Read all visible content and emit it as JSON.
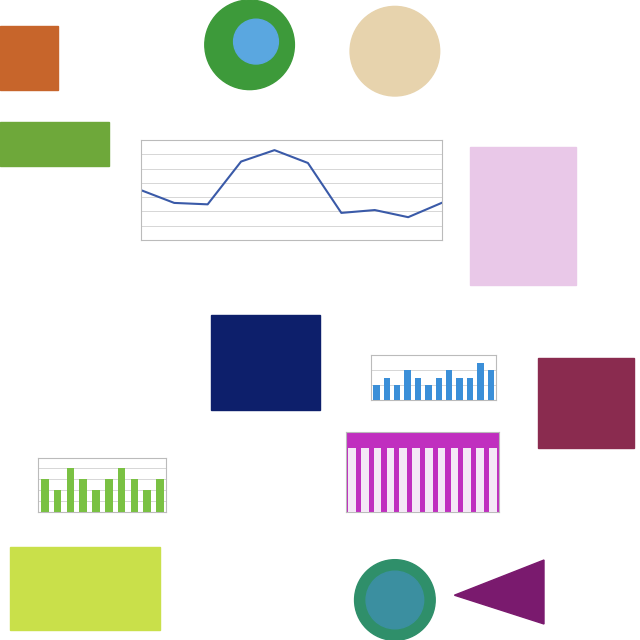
{
  "chart_data": [
    {
      "type": "line",
      "categories": [
        null,
        null,
        null,
        null,
        null,
        null,
        null,
        null,
        null,
        null
      ],
      "values": [
        3.5,
        2.6,
        2.5,
        5.5,
        6.3,
        5.4,
        1.9,
        2.1,
        1.6,
        2.6
      ],
      "color": "#3a5aa8",
      "ylim": [
        0,
        7
      ],
      "yticks": [
        0,
        1,
        2,
        3,
        4,
        5,
        6,
        7
      ],
      "grid": true,
      "tick_labels": false
    },
    {
      "type": "bar",
      "categories": [
        null,
        null,
        null,
        null,
        null,
        null,
        null,
        null,
        null,
        null,
        null,
        null
      ],
      "values": [
        2,
        3,
        2,
        4,
        3,
        2,
        3,
        4,
        3,
        3,
        5,
        4
      ],
      "color": "#3b8fd8",
      "ylim": [
        0,
        6
      ],
      "yticks": [
        0,
        2,
        4,
        6
      ],
      "grid": true,
      "tick_labels": false
    },
    {
      "type": "bar",
      "categories": [
        null,
        null,
        null,
        null,
        null,
        null,
        null,
        null,
        null,
        null
      ],
      "values": [
        3,
        2,
        4,
        3,
        2,
        3,
        4,
        3,
        2,
        3
      ],
      "color": "#7ac143",
      "ylim": [
        0,
        5
      ],
      "yticks": [
        0,
        1,
        2,
        3,
        4,
        5
      ],
      "grid": true,
      "tick_labels": false
    },
    {
      "type": "bar",
      "categories": [
        null,
        null,
        null,
        null,
        null,
        null,
        null,
        null,
        null,
        null,
        null,
        null
      ],
      "values": [
        4,
        4,
        4,
        4,
        4,
        4,
        4,
        4,
        4,
        4,
        4,
        4
      ],
      "color": "#f4e8f6",
      "ylim": [
        0,
        5
      ],
      "yticks": [
        0,
        5
      ],
      "grid": false,
      "tick_labels": false
    }
  ]
}
